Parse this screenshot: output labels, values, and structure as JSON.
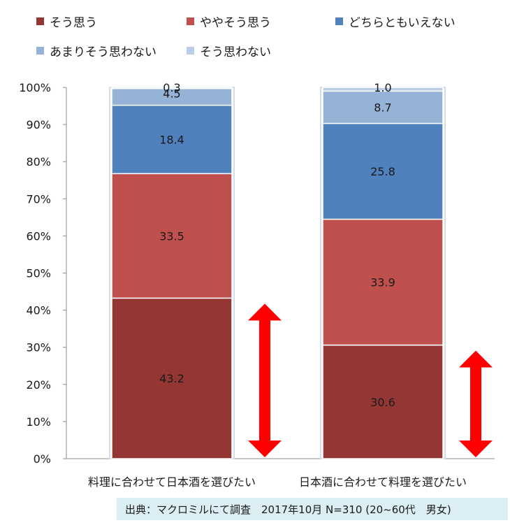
{
  "chart_data": {
    "type": "bar",
    "stacked": true,
    "percent": true,
    "categories": [
      "料理に合わせて日本酒を選びたい",
      "日本酒に合わせて料理を選びたい"
    ],
    "series": [
      {
        "name": "そう思う",
        "color": "#943634",
        "values": [
          43.2,
          30.6
        ]
      },
      {
        "name": "ややそう思う",
        "color": "#c0504d",
        "values": [
          33.5,
          33.9
        ]
      },
      {
        "name": "どちらともいえない",
        "color": "#4f81bd",
        "values": [
          18.4,
          25.8
        ]
      },
      {
        "name": "あまりそう思わない",
        "color": "#95b3d7",
        "values": [
          4.5,
          8.7
        ]
      },
      {
        "name": "そう思わない",
        "color": "#b9cde5",
        "values": [
          0.3,
          1.0
        ]
      }
    ],
    "data_labels": [
      [
        "43.2",
        "33.5",
        "18.4",
        "4.5",
        "0.3"
      ],
      [
        "30.6",
        "33.9",
        "25.8",
        "8.7",
        "1.0"
      ]
    ],
    "yticks": [
      "0%",
      "10%",
      "20%",
      "30%",
      "40%",
      "50%",
      "60%",
      "70%",
      "80%",
      "90%",
      "100%"
    ],
    "ylim": [
      0,
      100
    ],
    "legend_position": "top",
    "annotations": [
      "red double arrow beside first segment of each bar"
    ]
  },
  "source_note": "出典：マクロミルにて調査　2017年10月 N=310 (20~60代　男女)"
}
